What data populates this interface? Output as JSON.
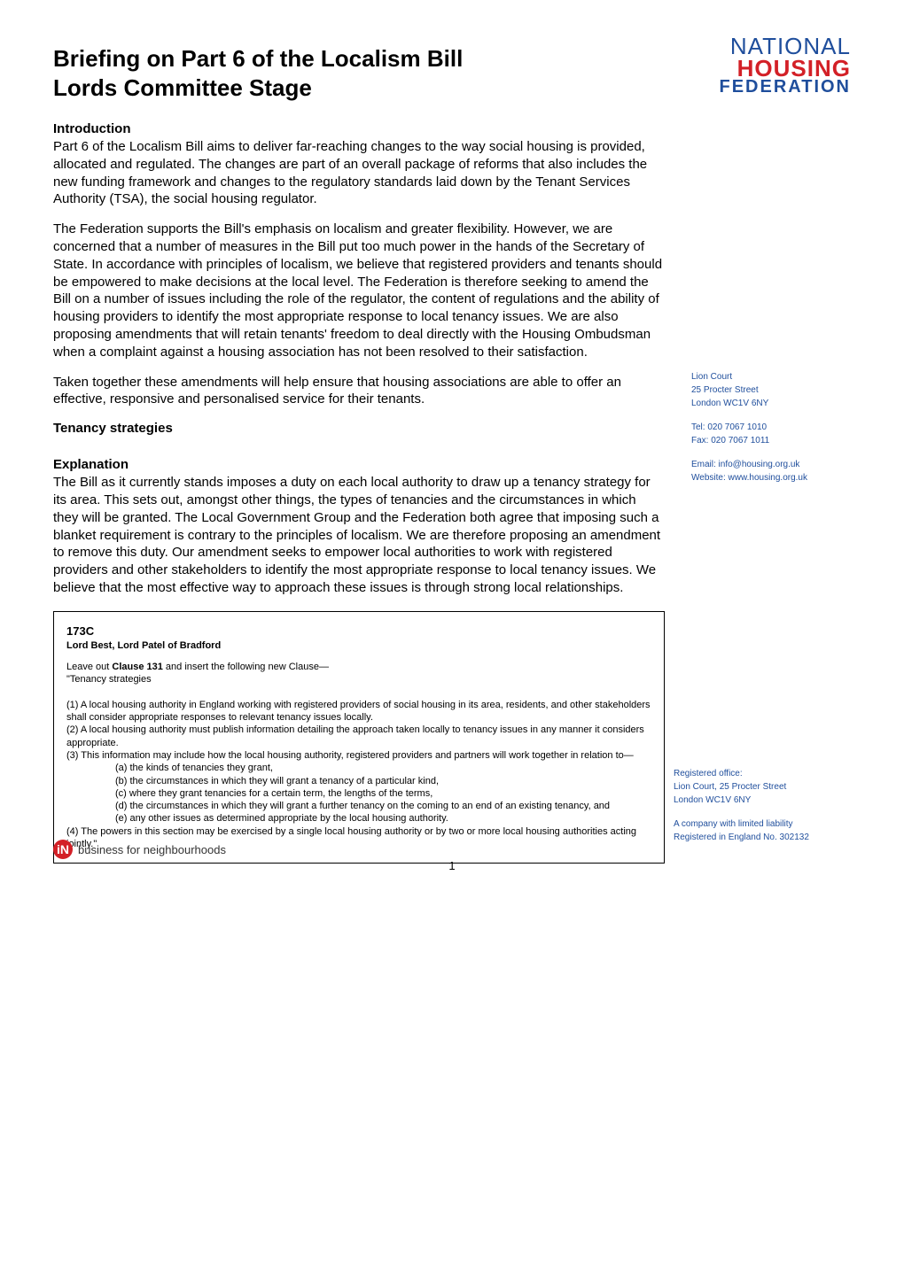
{
  "title_line1": "Briefing on Part 6 of the Localism Bill",
  "title_line2": "Lords Committee Stage",
  "logo": {
    "line1": "NATIONAL",
    "line2": "HOUSING",
    "line3": "FEDERATION"
  },
  "introduction": {
    "heading": "Introduction",
    "para1": "Part 6 of the Localism Bill aims to deliver far-reaching changes to the way social housing is provided, allocated and regulated. The changes are part of an overall package of reforms that also includes the new funding framework and changes to the regulatory standards laid down by the Tenant Services Authority (TSA), the social housing regulator.",
    "para2": "The Federation supports the Bill's emphasis on localism and greater flexibility. However, we are concerned that a number of measures in the Bill put too much power in the hands of the Secretary of State. In accordance with principles of localism, we believe that registered providers and tenants should be empowered to make decisions at the local level. The Federation is therefore seeking to amend the Bill on a number of issues including the role of the regulator, the content of regulations and the ability of housing providers to identify the most appropriate response to local tenancy issues. We are also proposing amendments that will retain tenants' freedom to deal directly with the Housing Ombudsman when a complaint against a housing association has not been resolved to their satisfaction.",
    "para3": "Taken together these amendments will help ensure that housing associations are able to offer an effective, responsive and personalised service for their tenants."
  },
  "tenancy_strategies": {
    "heading": "Tenancy strategies",
    "explanation_heading": "Explanation",
    "explanation_para": "The Bill as it currently stands imposes a duty on each local authority to draw up a tenancy strategy for its area. This sets out, amongst other things, the types of tenancies and the circumstances in which they will be granted. The Local Government Group and the Federation both agree that imposing such a blanket requirement is contrary to the principles of localism. We are therefore proposing an amendment to remove this duty. Our amendment seeks to empower local authorities to work with registered providers and other stakeholders to identify the most appropriate response to local tenancy issues. We believe that the most effective way to approach these issues is through strong local relationships."
  },
  "amendment": {
    "code": "173C",
    "sponsors": "Lord Best, Lord Patel of Bradford",
    "intro_prefix": "Leave out ",
    "intro_bold": "Clause 131",
    "intro_suffix": " and insert the following new Clause—",
    "subtitle": "\"Tenancy strategies",
    "sub1": "(1) A local housing authority in England working with registered providers of social housing in its area, residents, and other stakeholders shall consider appropriate responses to relevant tenancy issues locally.",
    "sub2": "(2) A local housing authority must publish information detailing the approach taken locally to tenancy issues in any manner it considers appropriate.",
    "sub3": "(3) This information may include how the local housing authority, registered providers and partners will work together in relation to—",
    "item_a": "(a) the kinds of tenancies they grant,",
    "item_b": "(b) the circumstances in which they will grant a tenancy of a particular kind,",
    "item_c": "(c) where they grant tenancies for a certain term, the lengths of the terms,",
    "item_d": "(d) the circumstances in which they will grant a further tenancy on the coming to an end of an existing tenancy, and",
    "item_e": "(e) any other issues as determined appropriate by the local housing authority.",
    "sub4": "(4) The powers in this section may be exercised by a single local housing authority or by two or more local housing authorities acting jointly.\""
  },
  "sidebar": {
    "address_line1": "Lion Court",
    "address_line2": "25 Procter Street",
    "address_line3": "London WC1V 6NY",
    "tel": "Tel: 020 7067 1010",
    "fax": "Fax: 020 7067 1011",
    "email": "Email: info@housing.org.uk",
    "website": "Website: www.housing.org.uk"
  },
  "footer_sidebar": {
    "registered_office_label": "Registered office:",
    "registered_office_line1": "Lion Court, 25 Procter Street",
    "registered_office_line2": "London WC1V 6NY",
    "company_line1": "A company with limited liability",
    "company_line2": "Registered in England No. 302132"
  },
  "footer_logo": {
    "icon_text": "iN",
    "text": "business for neighbourhoods"
  },
  "page_number": "1",
  "colors": {
    "blue": "#1f4e9c",
    "red": "#d32027",
    "black": "#000000",
    "white": "#ffffff"
  }
}
